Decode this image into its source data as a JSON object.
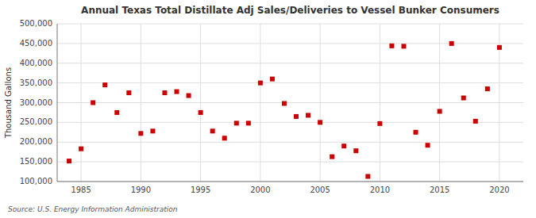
{
  "chart_data": {
    "type": "scatter",
    "title": "Annual Texas Total Distillate Adj Sales/Deliveries to Vessel Bunker Consumers",
    "y_label": "Thousand Gallons",
    "annotations": [
      "Source: U.S. Energy Information Administration"
    ],
    "color": "#cc0000",
    "marker": "square",
    "grid": true,
    "xlim": [
      1983,
      2022
    ],
    "ylim": [
      100000,
      500000
    ],
    "xticks": [
      1985,
      1990,
      1995,
      2000,
      2005,
      2010,
      2015,
      2020
    ],
    "yticks": [
      {
        "value": 100000,
        "label": "100,000"
      },
      {
        "value": 150000,
        "label": "150,000"
      },
      {
        "value": 200000,
        "label": "200,000"
      },
      {
        "value": 250000,
        "label": "250,000"
      },
      {
        "value": 300000,
        "label": "300,000"
      },
      {
        "value": 350000,
        "label": "350,000"
      },
      {
        "value": 400000,
        "label": "400,000"
      },
      {
        "value": 450000,
        "label": "450,000"
      },
      {
        "value": 500000,
        "label": "500,000"
      }
    ],
    "x": [
      1984,
      1985,
      1986,
      1987,
      1988,
      1989,
      1990,
      1991,
      1992,
      1993,
      1994,
      1995,
      1996,
      1997,
      1998,
      1999,
      2000,
      2001,
      2002,
      2003,
      2004,
      2005,
      2006,
      2007,
      2008,
      2009,
      2010,
      2011,
      2012,
      2013,
      2014,
      2015,
      2016,
      2017,
      2018,
      2019,
      2020
    ],
    "values": [
      152000,
      183000,
      300000,
      345000,
      275000,
      325000,
      222000,
      228000,
      325000,
      328000,
      318000,
      275000,
      228000,
      210000,
      248000,
      248000,
      350000,
      360000,
      298000,
      265000,
      268000,
      250000,
      163000,
      190000,
      178000,
      113000,
      247000,
      444000,
      443000,
      225000,
      192000,
      278000,
      450000,
      312000,
      253000,
      335000,
      440000
    ]
  }
}
